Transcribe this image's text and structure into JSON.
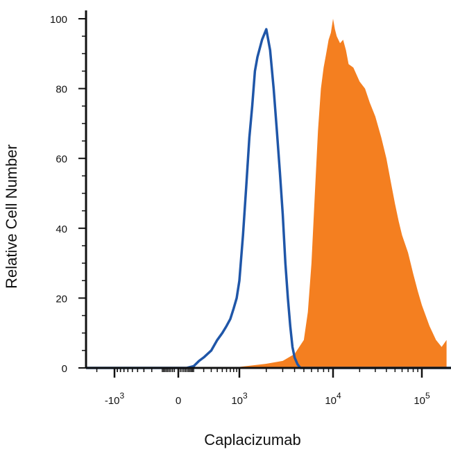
{
  "chart_data": {
    "type": "area",
    "title": "",
    "xlabel": "Caplacizumab",
    "ylabel": "Relative Cell Number",
    "ylim": [
      0,
      100
    ],
    "y_ticks": [
      0,
      20,
      40,
      60,
      80,
      100
    ],
    "x_scale": "biexponential",
    "x_ticks": [
      {
        "value": -1000,
        "base": "-10",
        "exp": "3"
      },
      {
        "value": 0,
        "base": "0",
        "exp": ""
      },
      {
        "value": 1000,
        "base": "10",
        "exp": "3"
      },
      {
        "value": 10000,
        "base": "10",
        "exp": "4"
      },
      {
        "value": 100000,
        "base": "10",
        "exp": "5"
      }
    ],
    "grid": false,
    "legend": "none",
    "series": [
      {
        "style": "outline",
        "color": "#1f56a8",
        "points": [
          [
            -3000,
            0
          ],
          [
            50,
            0
          ],
          [
            100,
            0.5
          ],
          [
            150,
            2
          ],
          [
            200,
            3
          ],
          [
            300,
            5
          ],
          [
            400,
            8
          ],
          [
            500,
            10
          ],
          [
            600,
            12
          ],
          [
            700,
            14
          ],
          [
            800,
            17
          ],
          [
            900,
            20
          ],
          [
            1000,
            25
          ],
          [
            1100,
            38
          ],
          [
            1200,
            52
          ],
          [
            1300,
            66
          ],
          [
            1400,
            75
          ],
          [
            1500,
            85
          ],
          [
            1600,
            89
          ],
          [
            1800,
            94
          ],
          [
            2000,
            97
          ],
          [
            2200,
            91
          ],
          [
            2400,
            80
          ],
          [
            2600,
            68
          ],
          [
            2800,
            56
          ],
          [
            3000,
            44
          ],
          [
            3200,
            30
          ],
          [
            3400,
            20
          ],
          [
            3600,
            12
          ],
          [
            3800,
            6
          ],
          [
            4000,
            3
          ],
          [
            4300,
            1
          ],
          [
            4600,
            0
          ],
          [
            200000,
            0
          ]
        ]
      },
      {
        "style": "filled",
        "color": "#f47f20",
        "points": [
          [
            -3000,
            0
          ],
          [
            -150,
            0
          ],
          [
            1000,
            0.3
          ],
          [
            2000,
            1.2
          ],
          [
            3000,
            2
          ],
          [
            4000,
            4
          ],
          [
            5000,
            8
          ],
          [
            5500,
            16
          ],
          [
            6000,
            30
          ],
          [
            6500,
            50
          ],
          [
            7000,
            68
          ],
          [
            7500,
            80
          ],
          [
            8000,
            86
          ],
          [
            8500,
            90
          ],
          [
            9000,
            94
          ],
          [
            9500,
            96
          ],
          [
            10000,
            100
          ],
          [
            10500,
            97
          ],
          [
            11000,
            95
          ],
          [
            12000,
            93
          ],
          [
            13000,
            94
          ],
          [
            14000,
            91
          ],
          [
            15000,
            87
          ],
          [
            17000,
            86
          ],
          [
            20000,
            82
          ],
          [
            23000,
            80
          ],
          [
            26000,
            76
          ],
          [
            30000,
            72
          ],
          [
            35000,
            66
          ],
          [
            40000,
            60
          ],
          [
            45000,
            53
          ],
          [
            50000,
            47
          ],
          [
            55000,
            42
          ],
          [
            60000,
            38
          ],
          [
            70000,
            33
          ],
          [
            80000,
            27
          ],
          [
            90000,
            22
          ],
          [
            100000,
            18
          ],
          [
            120000,
            12
          ],
          [
            140000,
            8
          ],
          [
            160000,
            6
          ],
          [
            180000,
            8
          ]
        ]
      }
    ]
  }
}
